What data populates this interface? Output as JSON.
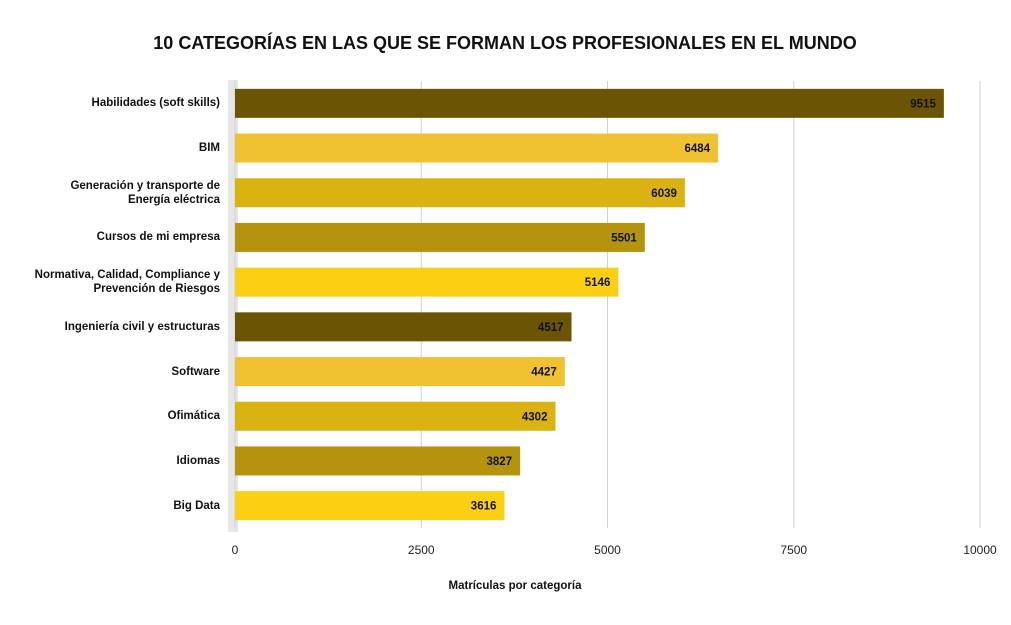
{
  "chart_data": {
    "type": "bar",
    "orientation": "horizontal",
    "title": "10 CATEGORÍAS EN LAS QUE SE FORMAN LOS PROFESIONALES EN EL MUNDO",
    "x_label": "Matrículas por categoría",
    "categories": [
      "Habilidades (soft skills)",
      "BIM",
      "Generación y transporte de Energía eléctrica",
      "Cursos de mi empresa",
      "Normativa, Calidad, Compliance y Prevención de Riesgos",
      "Ingeniería civil y estructuras",
      "Software",
      "Ofimática",
      "Idiomas",
      "Big Data"
    ],
    "values": [
      9515,
      6484,
      6039,
      5501,
      5146,
      4517,
      4427,
      4302,
      3827,
      3616
    ],
    "colors": [
      "#6b5404",
      "#f0c232",
      "#dab312",
      "#b3940c",
      "#fcd012",
      "#6b5404",
      "#f0c232",
      "#dab312",
      "#b3940c",
      "#fcd012"
    ],
    "xlim": [
      0,
      10000
    ],
    "xticks": [
      0,
      2500,
      5000,
      7500,
      10000
    ],
    "grid": true
  }
}
